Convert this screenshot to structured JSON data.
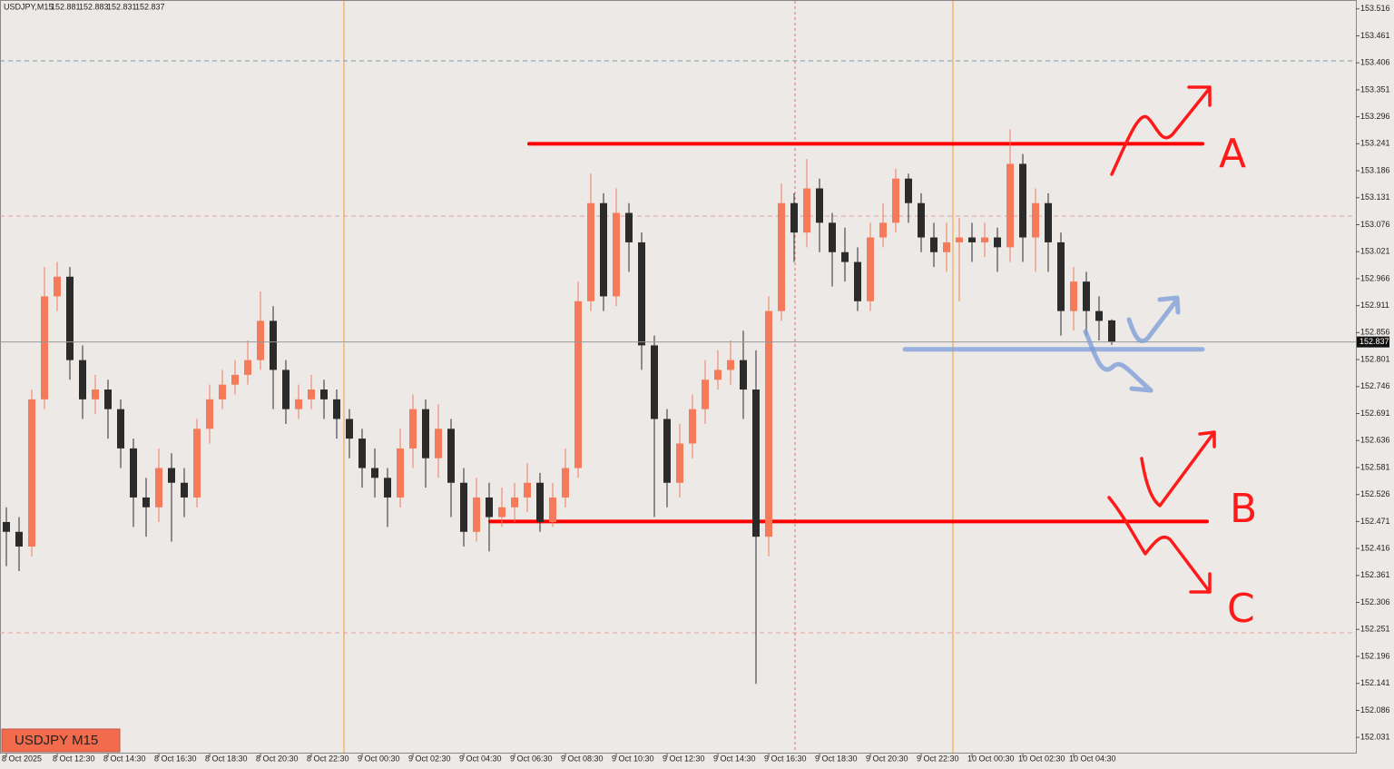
{
  "chart_data": {
    "type": "candlestick",
    "symbol": "USDJPY,M15",
    "badge": "USDJPY M15",
    "categories": [
      "8 Oct 2025",
      null,
      null,
      null,
      "8 Oct 12:30",
      null,
      null,
      null,
      "8 Oct 14:30",
      null,
      null,
      null,
      "8 Oct 16:30",
      null,
      null,
      null,
      "8 Oct 18:30",
      null,
      null,
      null,
      "8 Oct 20:30",
      null,
      null,
      null,
      "8 Oct 22:30",
      null,
      null,
      null,
      "9 Oct 00:30",
      null,
      null,
      null,
      "9 Oct 02:30",
      null,
      null,
      null,
      "9 Oct 04:30",
      null,
      null,
      null,
      "9 Oct 06:30",
      null,
      null,
      null,
      "9 Oct 08:30",
      null,
      null,
      null,
      "9 Oct 10:30",
      null,
      null,
      null,
      "9 Oct 12:30",
      null,
      null,
      null,
      "9 Oct 14:30",
      null,
      null,
      null,
      "9 Oct 16:30",
      null,
      null,
      null,
      "9 Oct 18:30",
      null,
      null,
      null,
      "9 Oct 20:30",
      null,
      null,
      null,
      "9 Oct 22:30",
      null,
      null,
      null,
      "10 Oct 00:30",
      null,
      null,
      null,
      "10 Oct 02:30",
      null,
      null,
      null,
      "10 Oct 04:30",
      null,
      null,
      null
    ],
    "candles": [
      [
        152.47,
        152.5,
        152.38,
        152.45
      ],
      [
        152.45,
        152.48,
        152.37,
        152.42
      ],
      [
        152.42,
        152.74,
        152.4,
        152.72
      ],
      [
        152.72,
        152.99,
        152.7,
        152.93
      ],
      [
        152.93,
        153.0,
        152.9,
        152.97
      ],
      [
        152.97,
        152.99,
        152.76,
        152.8
      ],
      [
        152.8,
        152.83,
        152.68,
        152.72
      ],
      [
        152.72,
        152.77,
        152.69,
        152.74
      ],
      [
        152.74,
        152.76,
        152.64,
        152.7
      ],
      [
        152.7,
        152.72,
        152.58,
        152.62
      ],
      [
        152.62,
        152.64,
        152.46,
        152.52
      ],
      [
        152.52,
        152.56,
        152.44,
        152.5
      ],
      [
        152.5,
        152.62,
        152.47,
        152.58
      ],
      [
        152.58,
        152.61,
        152.43,
        152.55
      ],
      [
        152.55,
        152.58,
        152.48,
        152.52
      ],
      [
        152.52,
        152.68,
        152.5,
        152.66
      ],
      [
        152.66,
        152.75,
        152.63,
        152.72
      ],
      [
        152.72,
        152.78,
        152.7,
        152.75
      ],
      [
        152.75,
        152.8,
        152.73,
        152.77
      ],
      [
        152.77,
        152.84,
        152.75,
        152.8
      ],
      [
        152.8,
        152.94,
        152.78,
        152.88
      ],
      [
        152.88,
        152.91,
        152.7,
        152.78
      ],
      [
        152.78,
        152.8,
        152.67,
        152.7
      ],
      [
        152.7,
        152.75,
        152.68,
        152.72
      ],
      [
        152.72,
        152.77,
        152.7,
        152.74
      ],
      [
        152.74,
        152.76,
        152.68,
        152.72
      ],
      [
        152.72,
        152.74,
        152.64,
        152.68
      ],
      [
        152.68,
        152.7,
        152.6,
        152.64
      ],
      [
        152.64,
        152.66,
        152.54,
        152.58
      ],
      [
        152.58,
        152.62,
        152.52,
        152.56
      ],
      [
        152.56,
        152.58,
        152.46,
        152.52
      ],
      [
        152.52,
        152.66,
        152.5,
        152.62
      ],
      [
        152.62,
        152.73,
        152.58,
        152.7
      ],
      [
        152.7,
        152.72,
        152.54,
        152.6
      ],
      [
        152.6,
        152.71,
        152.56,
        152.66
      ],
      [
        152.66,
        152.68,
        152.48,
        152.55
      ],
      [
        152.55,
        152.58,
        152.42,
        152.45
      ],
      [
        152.45,
        152.56,
        152.43,
        152.52
      ],
      [
        152.52,
        152.55,
        152.41,
        152.48
      ],
      [
        152.48,
        152.54,
        152.46,
        152.5
      ],
      [
        152.5,
        152.55,
        152.47,
        152.52
      ],
      [
        152.52,
        152.59,
        152.49,
        152.55
      ],
      [
        152.55,
        152.57,
        152.45,
        152.47
      ],
      [
        152.47,
        152.55,
        152.46,
        152.52
      ],
      [
        152.52,
        152.62,
        152.5,
        152.58
      ],
      [
        152.58,
        152.96,
        152.56,
        152.92
      ],
      [
        152.92,
        153.18,
        152.9,
        153.12
      ],
      [
        153.12,
        153.14,
        152.9,
        152.93
      ],
      [
        152.93,
        153.15,
        152.91,
        153.1
      ],
      [
        153.1,
        153.12,
        152.98,
        153.04
      ],
      [
        153.04,
        153.06,
        152.78,
        152.83
      ],
      [
        152.83,
        152.85,
        152.48,
        152.68
      ],
      [
        152.68,
        152.7,
        152.5,
        152.55
      ],
      [
        152.55,
        152.67,
        152.52,
        152.63
      ],
      [
        152.63,
        152.73,
        152.6,
        152.7
      ],
      [
        152.7,
        152.8,
        152.67,
        152.76
      ],
      [
        152.76,
        152.82,
        152.74,
        152.78
      ],
      [
        152.78,
        152.84,
        152.75,
        152.8
      ],
      [
        152.8,
        152.86,
        152.68,
        152.74
      ],
      [
        152.74,
        152.82,
        152.14,
        152.44
      ],
      [
        152.44,
        152.93,
        152.4,
        152.9
      ],
      [
        152.9,
        153.16,
        152.88,
        153.12
      ],
      [
        153.12,
        153.14,
        153.0,
        153.06
      ],
      [
        153.06,
        153.21,
        153.03,
        153.15
      ],
      [
        153.15,
        153.17,
        153.02,
        153.08
      ],
      [
        153.08,
        153.1,
        152.95,
        153.02
      ],
      [
        153.02,
        153.07,
        152.96,
        153.0
      ],
      [
        153.0,
        153.03,
        152.9,
        152.92
      ],
      [
        152.92,
        153.08,
        152.9,
        153.05
      ],
      [
        153.05,
        153.12,
        153.03,
        153.08
      ],
      [
        153.08,
        153.19,
        153.06,
        153.17
      ],
      [
        153.17,
        153.18,
        153.08,
        153.12
      ],
      [
        153.12,
        153.14,
        153.02,
        153.05
      ],
      [
        153.05,
        153.08,
        152.99,
        153.02
      ],
      [
        153.02,
        153.08,
        152.98,
        153.04
      ],
      [
        153.04,
        153.09,
        152.92,
        153.05
      ],
      [
        153.05,
        153.08,
        153.0,
        153.04
      ],
      [
        153.04,
        153.08,
        153.01,
        153.05
      ],
      [
        153.05,
        153.07,
        152.98,
        153.03
      ],
      [
        153.03,
        153.27,
        153.0,
        153.2
      ],
      [
        153.2,
        153.22,
        153.0,
        153.05
      ],
      [
        153.05,
        153.15,
        152.98,
        153.12
      ],
      [
        153.12,
        153.14,
        152.98,
        153.04
      ],
      [
        153.04,
        153.06,
        152.85,
        152.9
      ],
      [
        152.9,
        152.99,
        152.86,
        152.96
      ],
      [
        152.96,
        152.98,
        152.85,
        152.9
      ],
      [
        152.9,
        152.93,
        152.84,
        152.88
      ],
      [
        152.881,
        152.883,
        152.831,
        152.837
      ]
    ],
    "bull_color": "#f47a5a",
    "bear_color": "#2b2b2b",
    "ylim": [
      151.998,
      153.534
    ],
    "yticks": [
      153.516,
      153.461,
      153.406,
      153.351,
      153.296,
      153.241,
      153.186,
      153.131,
      153.076,
      153.021,
      152.966,
      152.911,
      152.856,
      152.801,
      152.746,
      152.691,
      152.636,
      152.581,
      152.526,
      152.471,
      152.416,
      152.361,
      152.306,
      152.251,
      152.196,
      152.141,
      152.086,
      152.031
    ],
    "grid": false,
    "levels": [
      {
        "value": 153.241,
        "color": "#ff0000"
      },
      {
        "value": 152.471,
        "color": "#ff0000"
      },
      {
        "value": 152.822,
        "color": "#8aa6dc"
      }
    ],
    "scenario_labels": [
      "A",
      "B",
      "C"
    ]
  }
}
